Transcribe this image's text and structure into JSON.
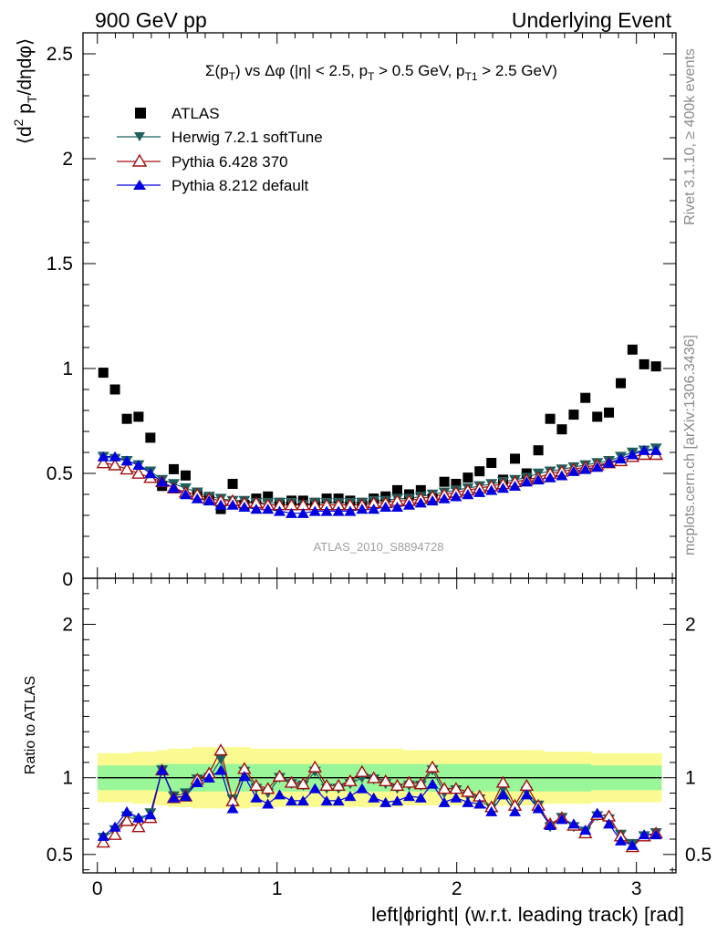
{
  "header": {
    "left": "900 GeV pp",
    "right": "Underlying Event",
    "side_top": "Rivet 3.1.10, ≥ 400k events",
    "side_bottom": "mcplots.cern.ch [arXiv:1306.3436]"
  },
  "colors": {
    "atlas": "#000000",
    "herwig": "#1f5f5f",
    "pythia6": "#a01010",
    "pythia8": "#0000e0",
    "band_inner": "#99f799",
    "band_outer": "#fafa90"
  },
  "chart_data": [
    {
      "type": "scatter",
      "title": "Σ(pT) vs Δφ (|η| < 2.5, pT > 0.5 GeV, pT1 > 2.5 GeV)",
      "title_parts": {
        "a": "Σ(p",
        "a_sub": "T",
        "b": ") vs Δφ (|η| < 2.5, p",
        "b_sub": "T",
        "c": " > 0.5 GeV, p",
        "c_sub": "T1",
        "d": " > 2.5 GeV)"
      },
      "ylabel": "⟨d2 pT/dηdφ⟩",
      "ylabel_parts": {
        "open": "⟨d",
        "sup": "2",
        "mid": " p",
        "sub": "T",
        "close": "/dηdφ⟩"
      },
      "watermark": "ATLAS_2010_S8894728",
      "xlim": [
        -0.08,
        3.22
      ],
      "ylim": [
        0,
        2.6
      ],
      "yticks": [
        0.5,
        1,
        1.5,
        2,
        2.5
      ],
      "ytick_labels": [
        "0.5",
        "1",
        "1.5",
        "2",
        "2.5"
      ],
      "y_zero_label": "0",
      "x": [
        0.033,
        0.098,
        0.164,
        0.229,
        0.295,
        0.36,
        0.425,
        0.491,
        0.556,
        0.622,
        0.687,
        0.753,
        0.818,
        0.884,
        0.949,
        1.014,
        1.08,
        1.145,
        1.211,
        1.276,
        1.342,
        1.407,
        1.473,
        1.538,
        1.604,
        1.669,
        1.735,
        1.8,
        1.865,
        1.931,
        1.996,
        2.062,
        2.127,
        2.193,
        2.258,
        2.324,
        2.389,
        2.454,
        2.52,
        2.585,
        2.651,
        2.716,
        2.782,
        2.847,
        2.913,
        2.978,
        3.043,
        3.109
      ],
      "series": [
        {
          "name": "ATLAS",
          "marker": "square",
          "values": [
            0.98,
            0.9,
            0.76,
            0.77,
            0.67,
            0.44,
            0.52,
            0.49,
            0.4,
            0.38,
            0.33,
            0.45,
            0.35,
            0.38,
            0.39,
            0.36,
            0.37,
            0.37,
            0.36,
            0.38,
            0.38,
            0.37,
            0.36,
            0.38,
            0.39,
            0.42,
            0.4,
            0.42,
            0.38,
            0.46,
            0.45,
            0.48,
            0.51,
            0.55,
            0.47,
            0.57,
            0.5,
            0.61,
            0.76,
            0.71,
            0.78,
            0.86,
            0.77,
            0.79,
            0.93,
            1.09,
            1.02,
            1.01
          ]
        },
        {
          "name": "Herwig 7.2.1 softTune",
          "marker": "triangle-down",
          "values": [
            0.58,
            0.57,
            0.56,
            0.54,
            0.51,
            0.47,
            0.45,
            0.43,
            0.41,
            0.39,
            0.38,
            0.37,
            0.37,
            0.36,
            0.36,
            0.36,
            0.36,
            0.35,
            0.36,
            0.36,
            0.36,
            0.36,
            0.36,
            0.37,
            0.37,
            0.38,
            0.38,
            0.39,
            0.4,
            0.41,
            0.42,
            0.43,
            0.44,
            0.45,
            0.46,
            0.47,
            0.48,
            0.5,
            0.51,
            0.52,
            0.53,
            0.54,
            0.55,
            0.56,
            0.58,
            0.6,
            0.61,
            0.62
          ]
        },
        {
          "name": "Pythia 6.428 370",
          "marker": "triangle-up-open",
          "values": [
            0.55,
            0.54,
            0.52,
            0.5,
            0.48,
            0.46,
            0.43,
            0.41,
            0.4,
            0.38,
            0.37,
            0.37,
            0.36,
            0.36,
            0.35,
            0.35,
            0.35,
            0.35,
            0.35,
            0.35,
            0.35,
            0.35,
            0.35,
            0.36,
            0.36,
            0.37,
            0.37,
            0.38,
            0.39,
            0.4,
            0.41,
            0.42,
            0.43,
            0.44,
            0.45,
            0.46,
            0.47,
            0.48,
            0.5,
            0.51,
            0.52,
            0.53,
            0.54,
            0.55,
            0.56,
            0.58,
            0.59,
            0.59
          ]
        },
        {
          "name": "Pythia 8.212 default",
          "marker": "triangle-up",
          "values": [
            0.58,
            0.58,
            0.56,
            0.54,
            0.5,
            0.46,
            0.43,
            0.4,
            0.38,
            0.37,
            0.35,
            0.35,
            0.34,
            0.33,
            0.33,
            0.32,
            0.31,
            0.31,
            0.32,
            0.32,
            0.32,
            0.32,
            0.33,
            0.33,
            0.34,
            0.34,
            0.35,
            0.36,
            0.37,
            0.38,
            0.39,
            0.4,
            0.41,
            0.42,
            0.43,
            0.44,
            0.46,
            0.47,
            0.48,
            0.49,
            0.51,
            0.52,
            0.53,
            0.55,
            0.57,
            0.59,
            0.61,
            0.61
          ]
        }
      ]
    },
    {
      "type": "line",
      "ylabel": "Ratio to ATLAS",
      "xlabel": "left|ϕright| (w.r.t. leading track) [rad]",
      "xlim": [
        -0.08,
        3.22
      ],
      "ylim": [
        0.38,
        2.3
      ],
      "xticks": [
        0,
        1,
        2,
        3
      ],
      "xtick_labels": [
        "0",
        "1",
        "2",
        "3"
      ],
      "yticks": [
        0.5,
        1,
        2
      ],
      "ytick_labels": [
        "0.5",
        "1",
        "2"
      ],
      "band_inner_halfwidth": [
        0.08,
        0.08,
        0.08,
        0.08,
        0.08,
        0.09,
        0.09,
        0.09,
        0.09,
        0.09,
        0.09,
        0.09,
        0.09,
        0.09,
        0.09,
        0.09,
        0.09,
        0.09,
        0.09,
        0.09,
        0.09,
        0.09,
        0.09,
        0.09,
        0.09,
        0.09,
        0.09,
        0.09,
        0.09,
        0.09,
        0.09,
        0.09,
        0.09,
        0.09,
        0.09,
        0.09,
        0.09,
        0.09,
        0.09,
        0.09,
        0.09,
        0.09,
        0.08,
        0.08,
        0.08,
        0.08,
        0.08,
        0.08
      ],
      "band_outer_halfwidth": [
        0.16,
        0.16,
        0.16,
        0.17,
        0.17,
        0.18,
        0.19,
        0.19,
        0.2,
        0.2,
        0.2,
        0.2,
        0.2,
        0.19,
        0.19,
        0.19,
        0.19,
        0.19,
        0.19,
        0.19,
        0.19,
        0.19,
        0.19,
        0.19,
        0.19,
        0.19,
        0.18,
        0.18,
        0.18,
        0.18,
        0.18,
        0.18,
        0.18,
        0.18,
        0.18,
        0.18,
        0.18,
        0.18,
        0.17,
        0.17,
        0.17,
        0.17,
        0.16,
        0.16,
        0.16,
        0.16,
        0.16,
        0.16
      ],
      "series": [
        {
          "name": "Herwig 7.2.1 softTune",
          "marker": "triangle-down",
          "values": [
            0.61,
            0.66,
            0.75,
            0.72,
            0.77,
            1.05,
            0.88,
            0.9,
            0.99,
            1.0,
            1.12,
            0.86,
            1.04,
            0.93,
            0.9,
            1.0,
            0.96,
            0.95,
            1.04,
            0.93,
            0.93,
            0.96,
            1.0,
            0.99,
            0.96,
            0.93,
            0.95,
            0.95,
            1.05,
            0.9,
            0.92,
            0.88,
            0.86,
            0.8,
            0.93,
            0.8,
            0.91,
            0.82,
            0.68,
            0.74,
            0.68,
            0.65,
            0.75,
            0.73,
            0.63,
            0.57,
            0.62,
            0.64
          ]
        },
        {
          "name": "Pythia 6.428 370",
          "marker": "triangle-up-open",
          "values": [
            0.58,
            0.63,
            0.72,
            0.68,
            0.74,
            1.05,
            0.87,
            0.88,
            0.99,
            1.03,
            1.18,
            0.85,
            1.06,
            0.95,
            0.93,
            1.01,
            0.97,
            0.96,
            1.07,
            0.95,
            0.95,
            0.98,
            1.04,
            1.0,
            0.98,
            0.95,
            0.97,
            0.96,
            1.07,
            0.93,
            0.93,
            0.91,
            0.88,
            0.81,
            0.97,
            0.82,
            0.95,
            0.82,
            0.7,
            0.74,
            0.69,
            0.64,
            0.76,
            0.75,
            0.62,
            0.55,
            0.62,
            0.64
          ]
        },
        {
          "name": "Pythia 8.212 default",
          "marker": "triangle-up",
          "values": [
            0.62,
            0.68,
            0.78,
            0.74,
            0.76,
            1.05,
            0.87,
            0.88,
            0.97,
            1.0,
            1.05,
            0.8,
            1.01,
            0.87,
            0.83,
            0.89,
            0.85,
            0.85,
            0.93,
            0.85,
            0.85,
            0.88,
            0.93,
            0.87,
            0.84,
            0.85,
            0.88,
            0.87,
            0.96,
            0.84,
            0.87,
            0.84,
            0.83,
            0.78,
            0.89,
            0.78,
            0.89,
            0.8,
            0.69,
            0.73,
            0.7,
            0.66,
            0.77,
            0.7,
            0.59,
            0.56,
            0.63,
            0.63
          ]
        }
      ]
    }
  ]
}
